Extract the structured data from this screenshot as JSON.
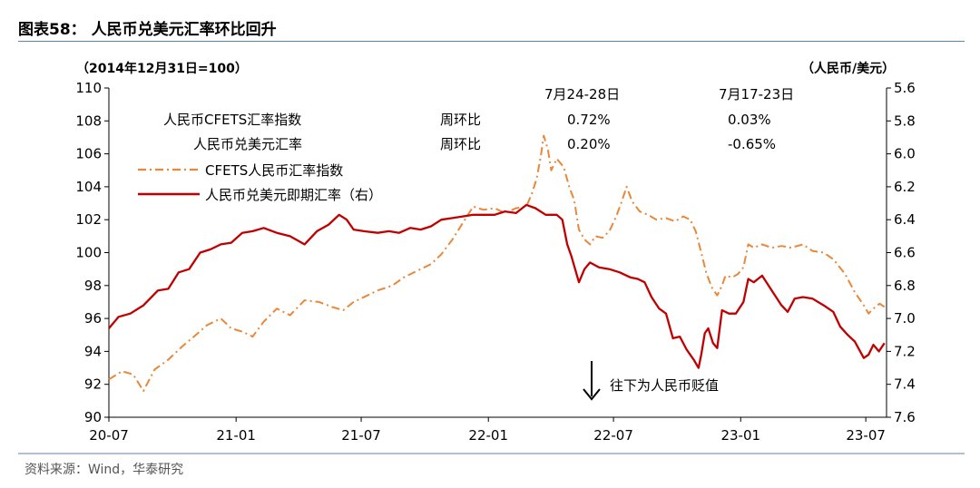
{
  "figure": {
    "title": "图表58：  人民币兑美元汇率环比回升",
    "source": "资料来源：Wind，华泰研究"
  },
  "chart_data": {
    "type": "line",
    "left_axis_unit": "（2014年12月31日=100）",
    "right_axis_unit": "（人民币/美元）",
    "ylim_left": [
      90,
      110
    ],
    "yticks_left": [
      "110",
      "108",
      "106",
      "104",
      "102",
      "100",
      "98",
      "96",
      "94",
      "92",
      "90"
    ],
    "ylim_right": [
      5.6,
      7.6
    ],
    "right_axis_inverted": true,
    "yticks_right": [
      "5.6",
      "5.8",
      "6.0",
      "6.2",
      "6.4",
      "6.6",
      "6.8",
      "7.0",
      "7.2",
      "7.4",
      "7.6"
    ],
    "xlim": [
      "2020-07-01",
      "2023-07-31"
    ],
    "xticks": [
      {
        "label": "20-07",
        "date": "2020-07-01"
      },
      {
        "label": "21-01",
        "date": "2021-01-01"
      },
      {
        "label": "21-07",
        "date": "2021-07-01"
      },
      {
        "label": "22-01",
        "date": "2022-01-01"
      },
      {
        "label": "22-07",
        "date": "2022-07-01"
      },
      {
        "label": "23-01",
        "date": "2023-01-01"
      },
      {
        "label": "23-07",
        "date": "2023-07-01"
      }
    ],
    "grid": false,
    "legend_position": "upper-left",
    "series": [
      {
        "name": "CFETS人民币汇率指数",
        "axis": "left",
        "color": "#E8883A",
        "style": "dash-dot",
        "points": [
          [
            "2020-07-01",
            92.3
          ],
          [
            "2020-07-20",
            92.8
          ],
          [
            "2020-08-05",
            92.6
          ],
          [
            "2020-08-20",
            91.6
          ],
          [
            "2020-09-05",
            92.9
          ],
          [
            "2020-09-25",
            93.5
          ],
          [
            "2020-10-15",
            94.3
          ],
          [
            "2020-11-01",
            94.9
          ],
          [
            "2020-11-20",
            95.6
          ],
          [
            "2020-12-10",
            96.0
          ],
          [
            "2020-12-25",
            95.4
          ],
          [
            "2021-01-10",
            95.2
          ],
          [
            "2021-01-25",
            94.9
          ],
          [
            "2021-02-10",
            95.8
          ],
          [
            "2021-03-01",
            96.6
          ],
          [
            "2021-03-20",
            96.2
          ],
          [
            "2021-04-10",
            97.1
          ],
          [
            "2021-05-01",
            97.0
          ],
          [
            "2021-05-20",
            96.7
          ],
          [
            "2021-06-05",
            96.5
          ],
          [
            "2021-06-20",
            97.0
          ],
          [
            "2021-07-10",
            97.4
          ],
          [
            "2021-07-25",
            97.7
          ],
          [
            "2021-08-15",
            98.0
          ],
          [
            "2021-09-01",
            98.5
          ],
          [
            "2021-09-20",
            98.9
          ],
          [
            "2021-10-10",
            99.3
          ],
          [
            "2021-10-25",
            99.9
          ],
          [
            "2021-11-10",
            100.8
          ],
          [
            "2021-11-25",
            101.8
          ],
          [
            "2021-12-10",
            102.8
          ],
          [
            "2021-12-25",
            102.6
          ],
          [
            "2022-01-10",
            102.7
          ],
          [
            "2022-01-25",
            102.4
          ],
          [
            "2022-02-10",
            102.7
          ],
          [
            "2022-02-25",
            102.8
          ],
          [
            "2022-03-05",
            103.6
          ],
          [
            "2022-03-12",
            104.5
          ],
          [
            "2022-03-18",
            105.9
          ],
          [
            "2022-03-22",
            107.1
          ],
          [
            "2022-03-28",
            106.3
          ],
          [
            "2022-04-02",
            105.0
          ],
          [
            "2022-04-10",
            105.7
          ],
          [
            "2022-04-20",
            105.2
          ],
          [
            "2022-04-28",
            104.0
          ],
          [
            "2022-05-05",
            103.2
          ],
          [
            "2022-05-12",
            101.4
          ],
          [
            "2022-05-20",
            100.8
          ],
          [
            "2022-05-28",
            100.5
          ],
          [
            "2022-06-05",
            101.0
          ],
          [
            "2022-06-15",
            100.9
          ],
          [
            "2022-06-25",
            101.3
          ],
          [
            "2022-07-05",
            102.2
          ],
          [
            "2022-07-12",
            103.0
          ],
          [
            "2022-07-20",
            104.0
          ],
          [
            "2022-07-28",
            103.1
          ],
          [
            "2022-08-08",
            102.5
          ],
          [
            "2022-08-20",
            102.3
          ],
          [
            "2022-09-01",
            102.0
          ],
          [
            "2022-09-15",
            102.1
          ],
          [
            "2022-09-28",
            101.9
          ],
          [
            "2022-10-10",
            102.2
          ],
          [
            "2022-10-20",
            102.0
          ],
          [
            "2022-10-28",
            101.3
          ],
          [
            "2022-11-05",
            100.0
          ],
          [
            "2022-11-12",
            98.8
          ],
          [
            "2022-11-20",
            97.9
          ],
          [
            "2022-11-28",
            97.4
          ],
          [
            "2022-12-05",
            98.0
          ],
          [
            "2022-12-10",
            98.6
          ],
          [
            "2022-12-20",
            98.5
          ],
          [
            "2022-12-28",
            98.7
          ],
          [
            "2023-01-05",
            99.1
          ],
          [
            "2023-01-12",
            100.5
          ],
          [
            "2023-01-20",
            100.3
          ],
          [
            "2023-02-01",
            100.5
          ],
          [
            "2023-02-15",
            100.3
          ],
          [
            "2023-03-01",
            100.4
          ],
          [
            "2023-03-15",
            100.3
          ],
          [
            "2023-04-01",
            100.5
          ],
          [
            "2023-04-15",
            100.1
          ],
          [
            "2023-05-01",
            100.0
          ],
          [
            "2023-05-15",
            99.6
          ],
          [
            "2023-06-01",
            98.7
          ],
          [
            "2023-06-15",
            97.6
          ],
          [
            "2023-06-28",
            96.8
          ],
          [
            "2023-07-05",
            96.3
          ],
          [
            "2023-07-12",
            96.6
          ],
          [
            "2023-07-21",
            96.9
          ],
          [
            "2023-07-28",
            96.7
          ]
        ]
      },
      {
        "name": "人民币兑美元即期汇率（右）",
        "axis": "right",
        "color": "#C00000",
        "style": "solid",
        "points": [
          [
            "2020-07-01",
            7.06
          ],
          [
            "2020-07-15",
            6.99
          ],
          [
            "2020-08-01",
            6.97
          ],
          [
            "2020-08-20",
            6.92
          ],
          [
            "2020-09-10",
            6.83
          ],
          [
            "2020-09-25",
            6.82
          ],
          [
            "2020-10-10",
            6.72
          ],
          [
            "2020-10-25",
            6.7
          ],
          [
            "2020-11-10",
            6.6
          ],
          [
            "2020-11-25",
            6.58
          ],
          [
            "2020-12-10",
            6.55
          ],
          [
            "2020-12-25",
            6.54
          ],
          [
            "2021-01-10",
            6.48
          ],
          [
            "2021-01-25",
            6.47
          ],
          [
            "2021-02-10",
            6.45
          ],
          [
            "2021-03-01",
            6.48
          ],
          [
            "2021-03-20",
            6.5
          ],
          [
            "2021-04-10",
            6.55
          ],
          [
            "2021-04-28",
            6.47
          ],
          [
            "2021-05-15",
            6.43
          ],
          [
            "2021-05-30",
            6.37
          ],
          [
            "2021-06-10",
            6.4
          ],
          [
            "2021-06-20",
            6.46
          ],
          [
            "2021-07-05",
            6.47
          ],
          [
            "2021-07-25",
            6.48
          ],
          [
            "2021-08-10",
            6.47
          ],
          [
            "2021-08-25",
            6.48
          ],
          [
            "2021-09-10",
            6.45
          ],
          [
            "2021-09-25",
            6.46
          ],
          [
            "2021-10-10",
            6.44
          ],
          [
            "2021-10-25",
            6.4
          ],
          [
            "2021-11-10",
            6.39
          ],
          [
            "2021-11-25",
            6.38
          ],
          [
            "2021-12-10",
            6.37
          ],
          [
            "2021-12-25",
            6.37
          ],
          [
            "2022-01-10",
            6.37
          ],
          [
            "2022-01-25",
            6.35
          ],
          [
            "2022-02-10",
            6.36
          ],
          [
            "2022-02-25",
            6.31
          ],
          [
            "2022-03-10",
            6.33
          ],
          [
            "2022-03-25",
            6.37
          ],
          [
            "2022-04-10",
            6.37
          ],
          [
            "2022-04-18",
            6.4
          ],
          [
            "2022-04-25",
            6.55
          ],
          [
            "2022-05-01",
            6.62
          ],
          [
            "2022-05-12",
            6.78
          ],
          [
            "2022-05-20",
            6.7
          ],
          [
            "2022-05-28",
            6.66
          ],
          [
            "2022-06-10",
            6.69
          ],
          [
            "2022-06-25",
            6.7
          ],
          [
            "2022-07-10",
            6.72
          ],
          [
            "2022-07-25",
            6.75
          ],
          [
            "2022-08-05",
            6.76
          ],
          [
            "2022-08-15",
            6.78
          ],
          [
            "2022-08-25",
            6.87
          ],
          [
            "2022-09-05",
            6.94
          ],
          [
            "2022-09-15",
            6.97
          ],
          [
            "2022-09-25",
            7.12
          ],
          [
            "2022-10-05",
            7.11
          ],
          [
            "2022-10-15",
            7.19
          ],
          [
            "2022-10-25",
            7.25
          ],
          [
            "2022-11-01",
            7.3
          ],
          [
            "2022-11-05",
            7.22
          ],
          [
            "2022-11-10",
            7.09
          ],
          [
            "2022-11-15",
            7.06
          ],
          [
            "2022-11-22",
            7.15
          ],
          [
            "2022-11-28",
            7.18
          ],
          [
            "2022-12-05",
            6.95
          ],
          [
            "2022-12-15",
            6.97
          ],
          [
            "2022-12-25",
            6.97
          ],
          [
            "2023-01-05",
            6.9
          ],
          [
            "2023-01-12",
            6.76
          ],
          [
            "2023-01-20",
            6.78
          ],
          [
            "2023-02-01",
            6.74
          ],
          [
            "2023-02-15",
            6.83
          ],
          [
            "2023-03-01",
            6.92
          ],
          [
            "2023-03-10",
            6.96
          ],
          [
            "2023-03-20",
            6.88
          ],
          [
            "2023-04-01",
            6.87
          ],
          [
            "2023-04-15",
            6.88
          ],
          [
            "2023-05-01",
            6.92
          ],
          [
            "2023-05-15",
            6.96
          ],
          [
            "2023-05-25",
            7.05
          ],
          [
            "2023-06-05",
            7.1
          ],
          [
            "2023-06-15",
            7.14
          ],
          [
            "2023-06-28",
            7.24
          ],
          [
            "2023-07-05",
            7.22
          ],
          [
            "2023-07-12",
            7.16
          ],
          [
            "2023-07-20",
            7.2
          ],
          [
            "2023-07-28",
            7.15
          ]
        ]
      }
    ],
    "annotations": {
      "header_col1": "7月24-28日",
      "header_col2": "7月17-23日",
      "rows": [
        {
          "label": "人民币CFETS汇率指数",
          "metric": "周环比",
          "val1": "0.72%",
          "val2": "0.03%"
        },
        {
          "label": "人民币兑美元汇率",
          "metric": "周环比",
          "val1": "0.20%",
          "val2": "-0.65%"
        }
      ],
      "arrow_note": "往下为人民币贬值"
    }
  }
}
